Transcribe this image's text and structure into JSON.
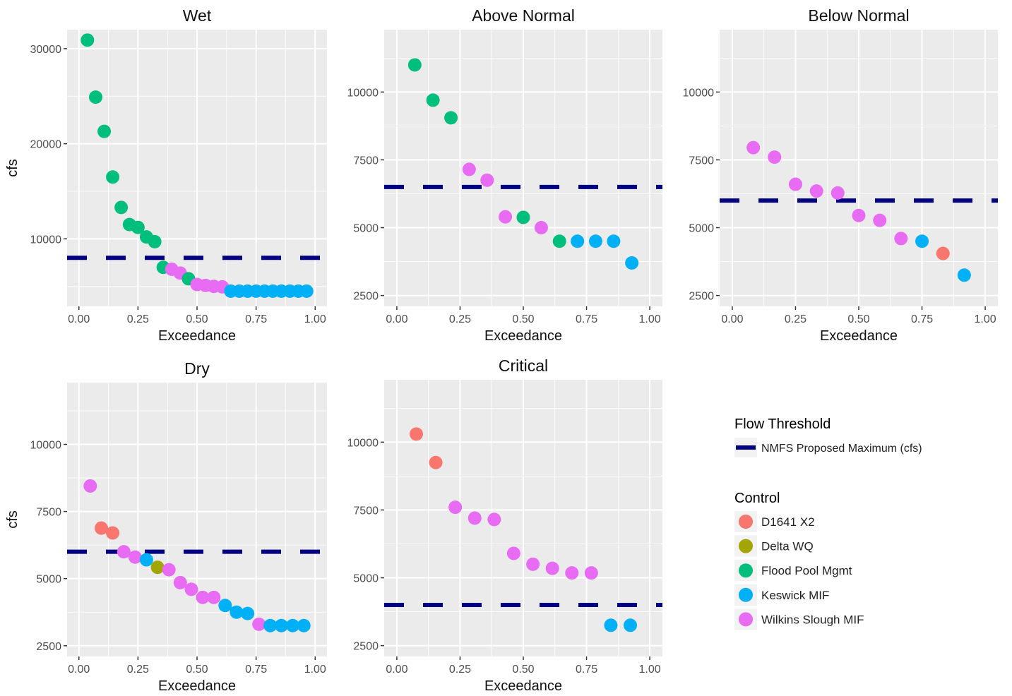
{
  "colors": {
    "D1641 X2": "#f8766d",
    "Delta WQ": "#a3a500",
    "Flood Pool Mgmt": "#00bf7d",
    "Keswick MIF": "#00b0f6",
    "Wilkins Slough MIF": "#e76bf3",
    "threshold": "#000080",
    "panel_bg": "#ebebeb",
    "grid": "#ffffff"
  },
  "legend": {
    "threshold_title": "Flow Threshold",
    "threshold_label": "NMFS Proposed Maximum (cfs)",
    "control_title": "Control",
    "control_items": [
      "D1641 X2",
      "Delta WQ",
      "Flood Pool Mgmt",
      "Keswick MIF",
      "Wilkins Slough MIF"
    ]
  },
  "chart_data": [
    {
      "type": "scatter",
      "title": "Wet",
      "xlabel": "Exceedance",
      "ylabel": "cfs",
      "xlim": [
        -0.05,
        1.05
      ],
      "ylim": [
        2900,
        32000
      ],
      "xticks": [
        "0.00",
        "0.25",
        "0.50",
        "0.75",
        "1.00"
      ],
      "yticks": [
        "10000",
        "20000",
        "30000"
      ],
      "threshold": 8000,
      "points": [
        {
          "x": 0.036,
          "y": 30900,
          "control": "Flood Pool Mgmt"
        },
        {
          "x": 0.071,
          "y": 24900,
          "control": "Flood Pool Mgmt"
        },
        {
          "x": 0.107,
          "y": 21300,
          "control": "Flood Pool Mgmt"
        },
        {
          "x": 0.143,
          "y": 16500,
          "control": "Flood Pool Mgmt"
        },
        {
          "x": 0.179,
          "y": 13300,
          "control": "Flood Pool Mgmt"
        },
        {
          "x": 0.214,
          "y": 11500,
          "control": "Flood Pool Mgmt"
        },
        {
          "x": 0.25,
          "y": 11200,
          "control": "Flood Pool Mgmt"
        },
        {
          "x": 0.286,
          "y": 10200,
          "control": "Flood Pool Mgmt"
        },
        {
          "x": 0.321,
          "y": 9700,
          "control": "Flood Pool Mgmt"
        },
        {
          "x": 0.357,
          "y": 7000,
          "control": "Flood Pool Mgmt"
        },
        {
          "x": 0.393,
          "y": 6800,
          "control": "Wilkins Slough MIF"
        },
        {
          "x": 0.429,
          "y": 6400,
          "control": "Wilkins Slough MIF"
        },
        {
          "x": 0.464,
          "y": 5800,
          "control": "Flood Pool Mgmt"
        },
        {
          "x": 0.5,
          "y": 5200,
          "control": "Wilkins Slough MIF"
        },
        {
          "x": 0.536,
          "y": 5100,
          "control": "Wilkins Slough MIF"
        },
        {
          "x": 0.571,
          "y": 5000,
          "control": "Wilkins Slough MIF"
        },
        {
          "x": 0.607,
          "y": 4950,
          "control": "Wilkins Slough MIF"
        },
        {
          "x": 0.643,
          "y": 4500,
          "control": "Keswick MIF"
        },
        {
          "x": 0.679,
          "y": 4500,
          "control": "Keswick MIF"
        },
        {
          "x": 0.714,
          "y": 4500,
          "control": "Keswick MIF"
        },
        {
          "x": 0.75,
          "y": 4500,
          "control": "Keswick MIF"
        },
        {
          "x": 0.786,
          "y": 4500,
          "control": "Keswick MIF"
        },
        {
          "x": 0.821,
          "y": 4500,
          "control": "Keswick MIF"
        },
        {
          "x": 0.857,
          "y": 4500,
          "control": "Keswick MIF"
        },
        {
          "x": 0.893,
          "y": 4500,
          "control": "Keswick MIF"
        },
        {
          "x": 0.929,
          "y": 4500,
          "control": "Keswick MIF"
        },
        {
          "x": 0.964,
          "y": 4500,
          "control": "Keswick MIF"
        }
      ]
    },
    {
      "type": "scatter",
      "title": "Above Normal",
      "xlabel": "Exceedance",
      "ylabel": "",
      "xlim": [
        -0.05,
        1.05
      ],
      "ylim": [
        2100,
        12300
      ],
      "xticks": [
        "0.00",
        "0.25",
        "0.50",
        "0.75",
        "1.00"
      ],
      "yticks": [
        "2500",
        "5000",
        "7500",
        "10000"
      ],
      "threshold": 6500,
      "points": [
        {
          "x": 0.071,
          "y": 11000,
          "control": "Flood Pool Mgmt"
        },
        {
          "x": 0.143,
          "y": 9700,
          "control": "Flood Pool Mgmt"
        },
        {
          "x": 0.214,
          "y": 9050,
          "control": "Flood Pool Mgmt"
        },
        {
          "x": 0.286,
          "y": 7150,
          "control": "Wilkins Slough MIF"
        },
        {
          "x": 0.357,
          "y": 6750,
          "control": "Wilkins Slough MIF"
        },
        {
          "x": 0.429,
          "y": 5400,
          "control": "Wilkins Slough MIF"
        },
        {
          "x": 0.5,
          "y": 5380,
          "control": "Flood Pool Mgmt"
        },
        {
          "x": 0.571,
          "y": 5000,
          "control": "Wilkins Slough MIF"
        },
        {
          "x": 0.643,
          "y": 4500,
          "control": "Flood Pool Mgmt"
        },
        {
          "x": 0.714,
          "y": 4500,
          "control": "Keswick MIF"
        },
        {
          "x": 0.786,
          "y": 4500,
          "control": "Keswick MIF"
        },
        {
          "x": 0.857,
          "y": 4500,
          "control": "Keswick MIF"
        },
        {
          "x": 0.929,
          "y": 3700,
          "control": "Keswick MIF"
        }
      ]
    },
    {
      "type": "scatter",
      "title": "Below Normal",
      "xlabel": "Exceedance",
      "ylabel": "",
      "xlim": [
        -0.05,
        1.05
      ],
      "ylim": [
        2100,
        12300
      ],
      "xticks": [
        "0.00",
        "0.25",
        "0.50",
        "0.75",
        "1.00"
      ],
      "yticks": [
        "2500",
        "5000",
        "7500",
        "10000"
      ],
      "threshold": 6000,
      "points": [
        {
          "x": 0.083,
          "y": 7950,
          "control": "Wilkins Slough MIF"
        },
        {
          "x": 0.167,
          "y": 7600,
          "control": "Wilkins Slough MIF"
        },
        {
          "x": 0.25,
          "y": 6600,
          "control": "Wilkins Slough MIF"
        },
        {
          "x": 0.333,
          "y": 6350,
          "control": "Wilkins Slough MIF"
        },
        {
          "x": 0.417,
          "y": 6280,
          "control": "Wilkins Slough MIF"
        },
        {
          "x": 0.5,
          "y": 5450,
          "control": "Wilkins Slough MIF"
        },
        {
          "x": 0.583,
          "y": 5270,
          "control": "Wilkins Slough MIF"
        },
        {
          "x": 0.667,
          "y": 4600,
          "control": "Wilkins Slough MIF"
        },
        {
          "x": 0.75,
          "y": 4500,
          "control": "Keswick MIF"
        },
        {
          "x": 0.833,
          "y": 4050,
          "control": "D1641 X2"
        },
        {
          "x": 0.917,
          "y": 3250,
          "control": "Keswick MIF"
        }
      ]
    },
    {
      "type": "scatter",
      "title": "Dry",
      "xlabel": "Exceedance",
      "ylabel": "cfs",
      "xlim": [
        -0.05,
        1.05
      ],
      "ylim": [
        2100,
        12300
      ],
      "xticks": [
        "0.00",
        "0.25",
        "0.50",
        "0.75",
        "1.00"
      ],
      "yticks": [
        "2500",
        "5000",
        "7500",
        "10000"
      ],
      "threshold": 6000,
      "points": [
        {
          "x": 0.048,
          "y": 8450,
          "control": "Wilkins Slough MIF"
        },
        {
          "x": 0.095,
          "y": 6880,
          "control": "D1641 X2"
        },
        {
          "x": 0.143,
          "y": 6700,
          "control": "D1641 X2"
        },
        {
          "x": 0.19,
          "y": 6000,
          "control": "Wilkins Slough MIF"
        },
        {
          "x": 0.238,
          "y": 5800,
          "control": "Wilkins Slough MIF"
        },
        {
          "x": 0.286,
          "y": 5700,
          "control": "Keswick MIF"
        },
        {
          "x": 0.333,
          "y": 5420,
          "control": "Delta WQ"
        },
        {
          "x": 0.381,
          "y": 5330,
          "control": "Wilkins Slough MIF"
        },
        {
          "x": 0.429,
          "y": 4850,
          "control": "Wilkins Slough MIF"
        },
        {
          "x": 0.476,
          "y": 4600,
          "control": "Wilkins Slough MIF"
        },
        {
          "x": 0.524,
          "y": 4300,
          "control": "Wilkins Slough MIF"
        },
        {
          "x": 0.571,
          "y": 4300,
          "control": "Wilkins Slough MIF"
        },
        {
          "x": 0.619,
          "y": 4000,
          "control": "Keswick MIF"
        },
        {
          "x": 0.667,
          "y": 3750,
          "control": "Keswick MIF"
        },
        {
          "x": 0.714,
          "y": 3700,
          "control": "Keswick MIF"
        },
        {
          "x": 0.762,
          "y": 3300,
          "control": "Wilkins Slough MIF"
        },
        {
          "x": 0.81,
          "y": 3250,
          "control": "Keswick MIF"
        },
        {
          "x": 0.857,
          "y": 3250,
          "control": "Keswick MIF"
        },
        {
          "x": 0.905,
          "y": 3250,
          "control": "Keswick MIF"
        },
        {
          "x": 0.952,
          "y": 3250,
          "control": "Keswick MIF"
        }
      ]
    },
    {
      "type": "scatter",
      "title": "Critical",
      "xlabel": "Exceedance",
      "ylabel": "",
      "xlim": [
        -0.05,
        1.05
      ],
      "ylim": [
        2100,
        12300
      ],
      "xticks": [
        "0.00",
        "0.25",
        "0.50",
        "0.75",
        "1.00"
      ],
      "yticks": [
        "2500",
        "5000",
        "7500",
        "10000"
      ],
      "threshold": 4000,
      "points": [
        {
          "x": 0.077,
          "y": 10300,
          "control": "D1641 X2"
        },
        {
          "x": 0.154,
          "y": 9250,
          "control": "D1641 X2"
        },
        {
          "x": 0.231,
          "y": 7600,
          "control": "Wilkins Slough MIF"
        },
        {
          "x": 0.308,
          "y": 7200,
          "control": "Wilkins Slough MIF"
        },
        {
          "x": 0.385,
          "y": 7150,
          "control": "Wilkins Slough MIF"
        },
        {
          "x": 0.462,
          "y": 5900,
          "control": "Wilkins Slough MIF"
        },
        {
          "x": 0.538,
          "y": 5500,
          "control": "Wilkins Slough MIF"
        },
        {
          "x": 0.615,
          "y": 5350,
          "control": "Wilkins Slough MIF"
        },
        {
          "x": 0.692,
          "y": 5180,
          "control": "Wilkins Slough MIF"
        },
        {
          "x": 0.769,
          "y": 5180,
          "control": "Wilkins Slough MIF"
        },
        {
          "x": 0.846,
          "y": 3250,
          "control": "Keswick MIF"
        },
        {
          "x": 0.923,
          "y": 3250,
          "control": "Keswick MIF"
        }
      ]
    }
  ]
}
